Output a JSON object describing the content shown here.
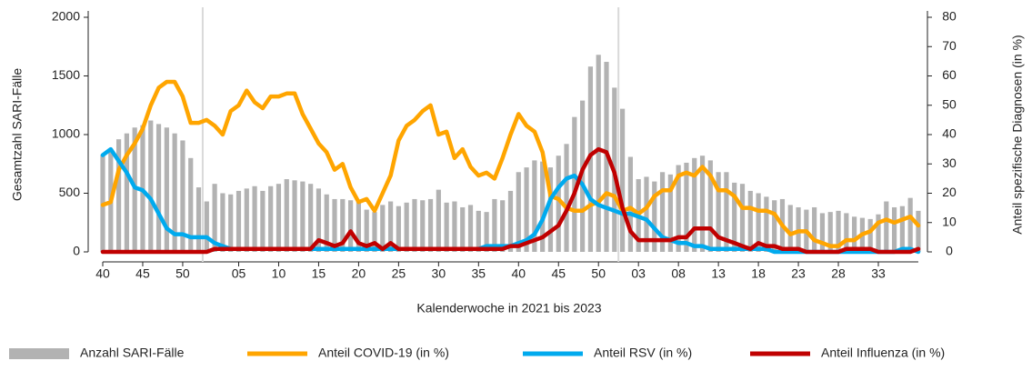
{
  "chart_data": {
    "type": "combo",
    "x_label": "Kalenderwoche in 2021 bis 2023",
    "y_label": "Gesamtzahl SARI-Fälle",
    "y2_label": "Anteil spezifische Diagnosen (in %)",
    "categories": [
      "40",
      null,
      null,
      null,
      null,
      "45",
      null,
      null,
      null,
      null,
      "50",
      null,
      null,
      null,
      null,
      null,
      null,
      "05",
      null,
      null,
      null,
      null,
      "10",
      null,
      null,
      null,
      null,
      "15",
      null,
      null,
      null,
      null,
      "20",
      null,
      null,
      null,
      null,
      "25",
      null,
      null,
      null,
      null,
      "30",
      null,
      null,
      null,
      null,
      "35",
      null,
      null,
      null,
      null,
      "40",
      null,
      null,
      null,
      null,
      "45",
      null,
      null,
      null,
      null,
      "50",
      null,
      null,
      null,
      null,
      "03",
      null,
      null,
      null,
      null,
      "08",
      null,
      null,
      null,
      null,
      "13",
      null,
      null,
      null,
      null,
      "18",
      null,
      null,
      null,
      null,
      "23",
      null,
      null,
      null,
      null,
      "28",
      null,
      null,
      null,
      null,
      "33",
      null,
      null,
      null,
      null,
      null
    ],
    "ylim": [
      0,
      2000
    ],
    "yticks": [
      0,
      500,
      1000,
      1500,
      2000
    ],
    "y2lim": [
      0,
      80
    ],
    "y2ticks": [
      0,
      10,
      20,
      30,
      40,
      50,
      60,
      70,
      80
    ],
    "series": [
      {
        "name": "Anzahl SARI-Fälle",
        "type": "bar",
        "color": "#b2b2b2",
        "values": [
          830,
          880,
          960,
          1010,
          1060,
          1080,
          1120,
          1090,
          1060,
          1010,
          950,
          800,
          550,
          430,
          580,
          500,
          490,
          520,
          540,
          560,
          520,
          560,
          580,
          620,
          610,
          600,
          580,
          540,
          490,
          450,
          450,
          440,
          430,
          360,
          340,
          400,
          430,
          390,
          420,
          450,
          440,
          450,
          530,
          420,
          430,
          380,
          400,
          350,
          340,
          450,
          440,
          520,
          680,
          720,
          780,
          770,
          720,
          820,
          920,
          1150,
          1290,
          1580,
          1680,
          1620,
          1400,
          1220,
          810,
          620,
          640,
          600,
          680,
          660,
          740,
          760,
          800,
          820,
          780,
          680,
          680,
          590,
          580,
          520,
          500,
          470,
          440,
          450,
          400,
          380,
          360,
          380,
          330,
          340,
          350,
          330,
          300,
          290,
          280,
          320,
          430,
          380,
          390,
          460,
          350
        ]
      },
      {
        "name": "Anteil COVID-19 (in %)",
        "type": "line",
        "axis": "y2",
        "color": "#ffa500",
        "values": [
          16,
          17,
          28,
          33,
          37,
          42,
          50,
          56,
          58,
          58,
          53,
          44,
          44,
          45,
          43,
          40,
          48,
          50,
          55,
          51,
          49,
          53,
          53,
          54,
          54,
          47,
          42,
          37,
          34,
          28,
          30,
          22,
          17,
          18,
          14,
          20,
          26,
          38,
          43,
          45,
          48,
          50,
          40,
          41,
          32,
          35,
          29,
          26,
          27,
          25,
          32,
          40,
          47,
          43,
          41,
          34,
          19,
          18,
          15,
          14,
          14,
          16,
          17,
          20,
          19,
          14,
          15,
          13,
          15,
          19,
          21,
          21,
          26,
          27,
          26,
          29,
          26,
          21,
          21,
          19,
          15,
          15,
          14,
          14,
          13,
          9,
          6,
          7,
          7,
          4,
          3,
          2,
          2,
          4,
          4,
          6,
          7,
          10,
          11,
          10,
          11,
          12,
          9
        ]
      },
      {
        "name": "Anteil RSV (in %)",
        "type": "line",
        "axis": "y2",
        "color": "#00aaee",
        "values": [
          33,
          35,
          31,
          27,
          22,
          21,
          18,
          13,
          8,
          6,
          6,
          5,
          5,
          5,
          3,
          2,
          1,
          1,
          1,
          1,
          1,
          1,
          1,
          1,
          1,
          1,
          1,
          1,
          1,
          1,
          1,
          1,
          1,
          1,
          1,
          1,
          1,
          1,
          1,
          1,
          1,
          1,
          1,
          1,
          1,
          1,
          1,
          1,
          2,
          2,
          2,
          2,
          3,
          4,
          6,
          11,
          18,
          22,
          25,
          26,
          23,
          18,
          16,
          15,
          14,
          13,
          13,
          12,
          11,
          8,
          5,
          4,
          3,
          3,
          2,
          2,
          1,
          1,
          1,
          1,
          1,
          1,
          1,
          1,
          0,
          0,
          0,
          0,
          0,
          0,
          0,
          0,
          0,
          0,
          0,
          0,
          0,
          0,
          0,
          0,
          1,
          1,
          0
        ]
      },
      {
        "name": "Anteil Influenza (in %)",
        "type": "line",
        "axis": "y2",
        "color": "#c00000",
        "values": [
          0,
          0,
          0,
          0,
          0,
          0,
          0,
          0,
          0,
          0,
          0,
          0,
          0,
          0,
          1,
          1,
          1,
          1,
          1,
          1,
          1,
          1,
          1,
          1,
          1,
          1,
          1,
          4,
          3,
          2,
          3,
          7,
          3,
          2,
          3,
          1,
          3,
          1,
          1,
          1,
          1,
          1,
          1,
          1,
          1,
          1,
          1,
          1,
          1,
          1,
          1,
          2,
          2,
          3,
          4,
          5,
          7,
          9,
          14,
          20,
          28,
          33,
          35,
          34,
          27,
          15,
          7,
          4,
          4,
          4,
          4,
          4,
          5,
          5,
          8,
          8,
          8,
          5,
          4,
          3,
          2,
          1,
          3,
          2,
          2,
          1,
          1,
          1,
          0,
          0,
          0,
          0,
          0,
          1,
          1,
          1,
          1,
          0,
          0,
          0,
          0,
          0,
          1
        ]
      }
    ]
  }
}
